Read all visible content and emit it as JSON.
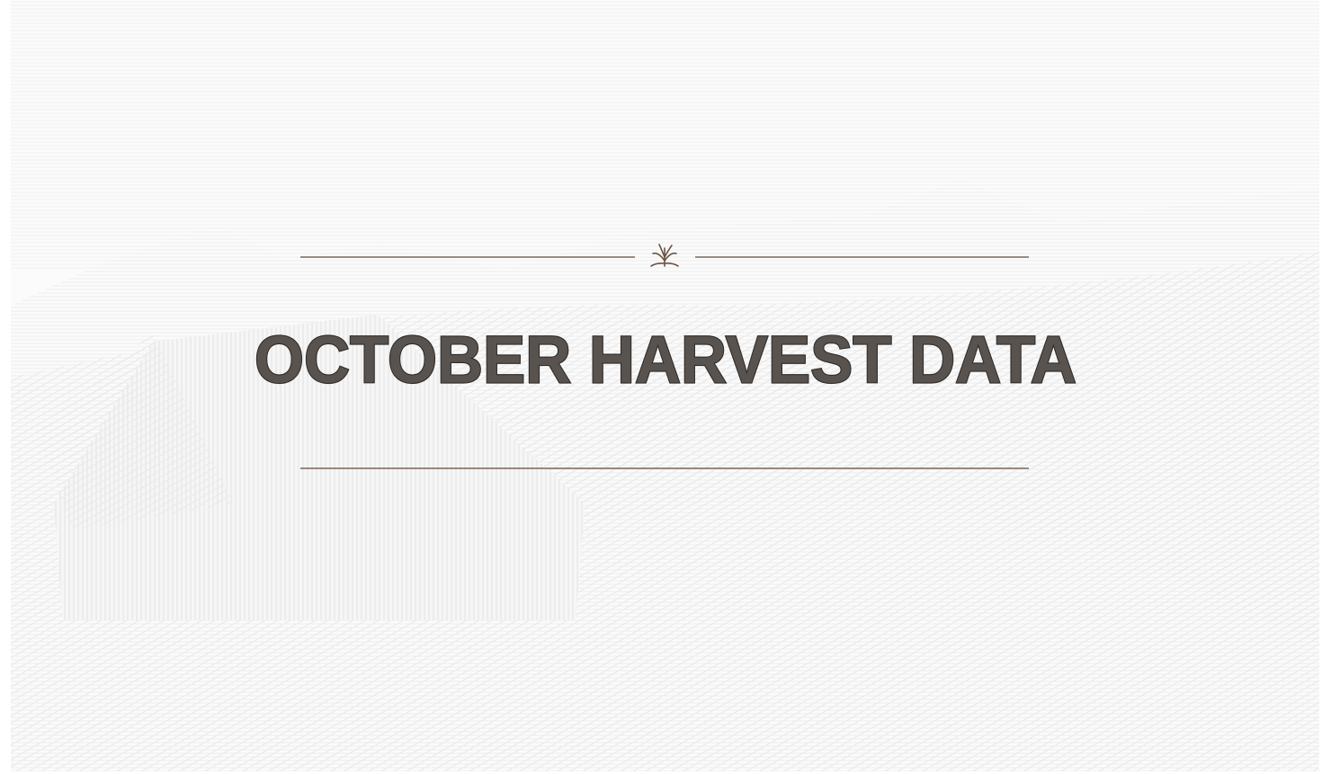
{
  "title": "OCTOBER HARVEST DATA"
}
